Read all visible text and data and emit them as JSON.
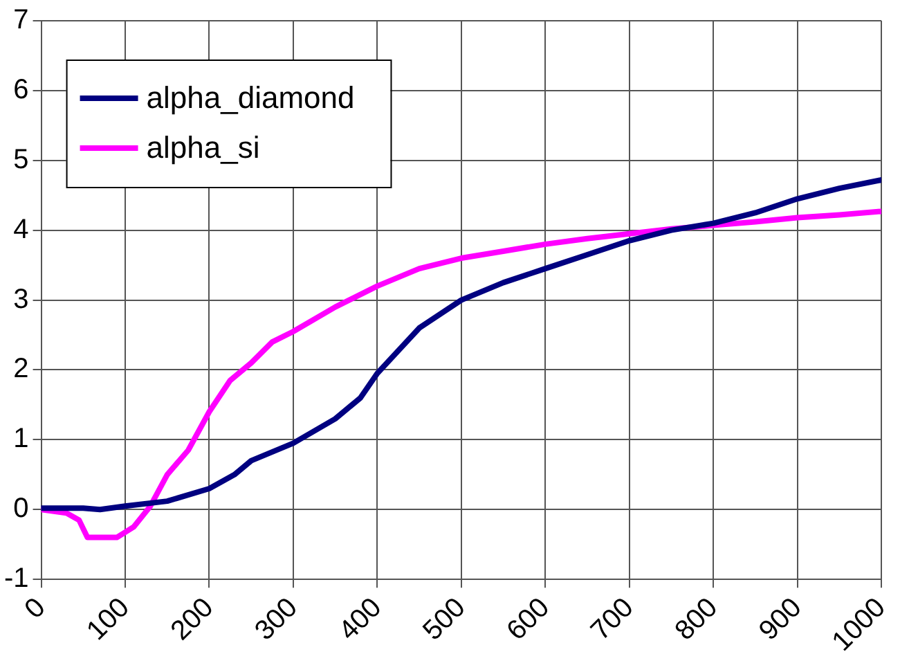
{
  "chart_data": {
    "type": "line",
    "xlim": [
      0,
      1000
    ],
    "xticks": [
      0,
      100,
      200,
      300,
      400,
      500,
      600,
      700,
      800,
      900,
      1000
    ],
    "ylim": [
      -1,
      7
    ],
    "yticks": [
      -1,
      0,
      1,
      2,
      3,
      4,
      5,
      6,
      7
    ],
    "grid": true,
    "legend": "top left",
    "marker": "none",
    "line_style": "solid",
    "series": [
      {
        "name": "alpha_diamond",
        "color": "#000080",
        "x": [
          0,
          50,
          70,
          100,
          150,
          200,
          230,
          250,
          300,
          350,
          380,
          400,
          450,
          500,
          550,
          600,
          650,
          700,
          750,
          800,
          850,
          900,
          950,
          1000
        ],
        "values": [
          0.02,
          0.02,
          0.0,
          0.05,
          0.12,
          0.3,
          0.5,
          0.7,
          0.95,
          1.3,
          1.6,
          1.95,
          2.6,
          3.0,
          3.25,
          3.45,
          3.65,
          3.85,
          4.0,
          4.1,
          4.25,
          4.45,
          4.6,
          4.72
        ]
      },
      {
        "name": "alpha_si",
        "color": "#ff00ff",
        "x": [
          0,
          30,
          45,
          55,
          90,
          110,
          130,
          150,
          175,
          200,
          225,
          250,
          275,
          300,
          350,
          400,
          450,
          500,
          550,
          600,
          650,
          700,
          750,
          800,
          850,
          900,
          950,
          1000
        ],
        "values": [
          0,
          -0.05,
          -0.15,
          -0.4,
          -0.4,
          -0.25,
          0.05,
          0.5,
          0.85,
          1.4,
          1.85,
          2.1,
          2.4,
          2.55,
          2.9,
          3.2,
          3.45,
          3.6,
          3.7,
          3.8,
          3.88,
          3.95,
          4.02,
          4.07,
          4.12,
          4.18,
          4.22,
          4.27
        ]
      }
    ]
  }
}
